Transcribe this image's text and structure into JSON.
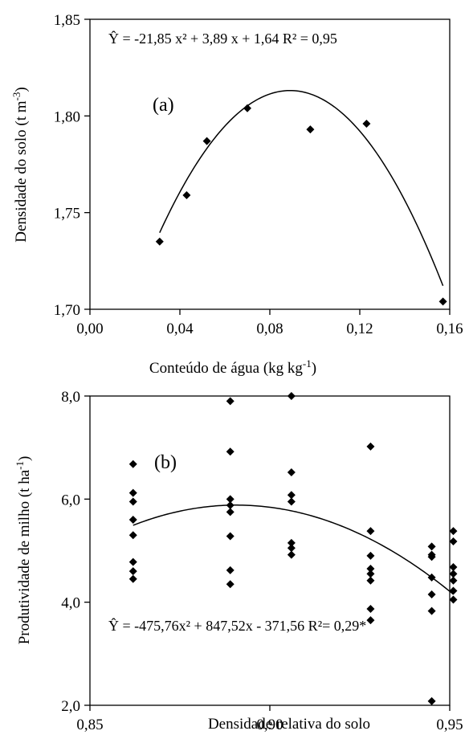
{
  "chart_data": [
    {
      "type": "scatter",
      "panel_label": "(a)",
      "equation": "Ŷ = -21,85 x² + 3,89 x + 1,64 R² = 0,95",
      "xlabel": {
        "text": "Conteúdo de água (kg kg",
        "sup": "-1",
        "end": ")"
      },
      "ylabel": {
        "text": "Densidade do solo (t m",
        "sup": "-3",
        "end": ")"
      },
      "xlim": [
        0,
        0.16
      ],
      "ylim": [
        1.7,
        1.85
      ],
      "x_ticks": [
        0.0,
        0.04,
        0.08,
        0.12,
        0.16
      ],
      "x_tick_labels": [
        "0,00",
        "0,04",
        "0,08",
        "0,12",
        "0,16"
      ],
      "y_ticks": [
        1.7,
        1.75,
        1.8,
        1.85
      ],
      "y_tick_labels": [
        "1,70",
        "1,75",
        "1,80",
        "1,85"
      ],
      "points": [
        [
          0.031,
          1.735
        ],
        [
          0.043,
          1.759
        ],
        [
          0.052,
          1.787
        ],
        [
          0.07,
          1.804
        ],
        [
          0.098,
          1.793
        ],
        [
          0.123,
          1.796
        ],
        [
          0.157,
          1.704
        ]
      ],
      "fit": {
        "a": -21.85,
        "b": 3.89,
        "c": 1.64,
        "x_range": [
          0.031,
          0.157
        ]
      }
    },
    {
      "type": "scatter",
      "panel_label": "(b)",
      "equation": "Ŷ = -475,76x² + 847,52x - 371,56 R²= 0,29*",
      "xlabel": {
        "text": "Densidade relativa do solo",
        "sup": "",
        "end": ""
      },
      "ylabel": {
        "text": "Produtividade de milho (t ha",
        "sup": "-1",
        "end": ")"
      },
      "xlim": [
        0.85,
        0.95
      ],
      "ylim": [
        2.0,
        8.0
      ],
      "x_ticks": [
        0.85,
        0.9,
        0.95
      ],
      "x_tick_labels": [
        "0,85",
        "0,90",
        "0,95"
      ],
      "y_ticks": [
        2.0,
        4.0,
        6.0,
        8.0
      ],
      "y_tick_labels": [
        "2,0",
        "4,0",
        "6,0",
        "8,0"
      ],
      "points": [
        [
          0.862,
          6.68
        ],
        [
          0.862,
          6.12
        ],
        [
          0.862,
          5.95
        ],
        [
          0.862,
          5.6
        ],
        [
          0.862,
          5.3
        ],
        [
          0.862,
          4.78
        ],
        [
          0.862,
          4.6
        ],
        [
          0.862,
          4.45
        ],
        [
          0.889,
          7.9
        ],
        [
          0.889,
          6.92
        ],
        [
          0.889,
          6.0
        ],
        [
          0.889,
          5.88
        ],
        [
          0.889,
          5.75
        ],
        [
          0.889,
          5.28
        ],
        [
          0.889,
          4.62
        ],
        [
          0.889,
          4.35
        ],
        [
          0.906,
          8.0
        ],
        [
          0.906,
          6.52
        ],
        [
          0.906,
          6.08
        ],
        [
          0.906,
          5.95
        ],
        [
          0.906,
          5.15
        ],
        [
          0.906,
          5.05
        ],
        [
          0.906,
          4.92
        ],
        [
          0.928,
          7.02
        ],
        [
          0.928,
          5.38
        ],
        [
          0.928,
          4.9
        ],
        [
          0.928,
          4.65
        ],
        [
          0.928,
          4.55
        ],
        [
          0.928,
          4.42
        ],
        [
          0.928,
          3.87
        ],
        [
          0.928,
          3.65
        ],
        [
          0.945,
          5.08
        ],
        [
          0.945,
          4.92
        ],
        [
          0.945,
          4.88
        ],
        [
          0.945,
          4.48
        ],
        [
          0.945,
          4.15
        ],
        [
          0.945,
          3.83
        ],
        [
          0.945,
          2.08
        ],
        [
          0.951,
          5.38
        ],
        [
          0.951,
          5.18
        ],
        [
          0.951,
          4.68
        ],
        [
          0.951,
          4.55
        ],
        [
          0.951,
          4.42
        ],
        [
          0.951,
          4.22
        ],
        [
          0.951,
          4.05
        ]
      ],
      "fit": {
        "a": -475.76,
        "b": 847.52,
        "c": -371.56,
        "x_range": [
          0.862,
          0.951
        ]
      }
    }
  ]
}
